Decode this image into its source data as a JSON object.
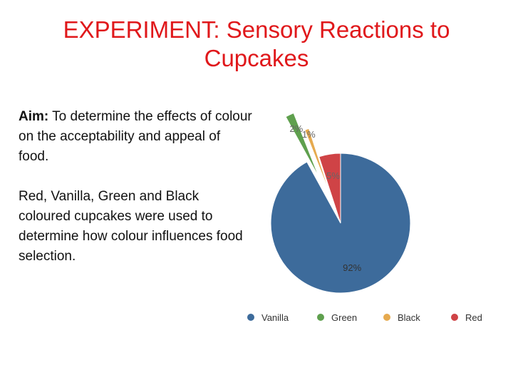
{
  "slide": {
    "title": "EXPERIMENT: Sensory Reactions to Cupcakes",
    "aim_label": "Aim:",
    "aim_text": " To determine the effects of colour on the acceptability and appeal of food.",
    "paragraph": "Red, Vanilla, Green and Black coloured cupcakes were used to determine how colour influences food selection."
  },
  "colors": {
    "title": "#e0181b",
    "Vanilla": "#3d6b9b",
    "Green": "#5fa04e",
    "Black": "#e6aa4f",
    "Red": "#cf4346"
  },
  "chart_data": {
    "type": "pie",
    "title": "",
    "categories": [
      "Vanilla",
      "Green",
      "Black",
      "Red"
    ],
    "values": [
      92,
      2,
      1,
      5
    ],
    "value_labels": [
      "92%",
      "2%",
      "1%",
      "5%"
    ],
    "legend_position": "bottom",
    "exploded": true
  }
}
